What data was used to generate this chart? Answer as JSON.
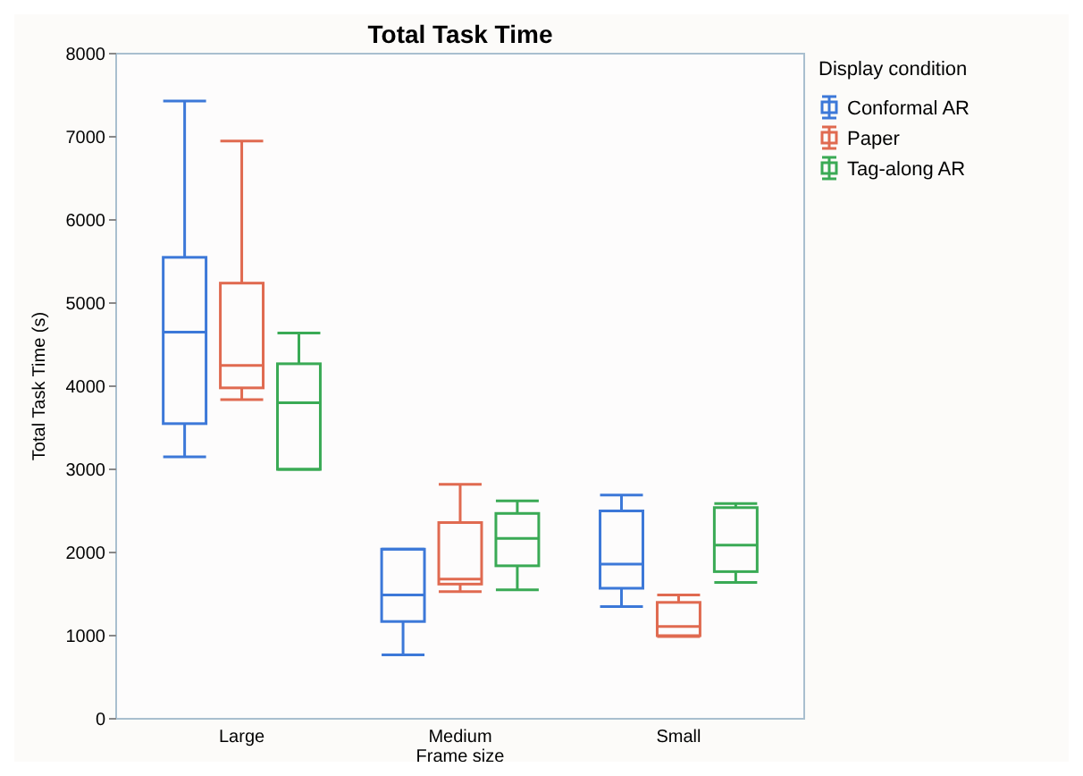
{
  "chart_data": {
    "type": "box",
    "title": "Total Task Time",
    "xlabel": "Frame size",
    "ylabel": "Total Task Time (s)",
    "legend_title": "Display condition",
    "legend": "top right",
    "grid": false,
    "categories": [
      "Large",
      "Medium",
      "Small"
    ],
    "ylim": [
      0,
      8000
    ],
    "yticks": [
      0,
      1000,
      2000,
      3000,
      4000,
      5000,
      6000,
      7000,
      8000
    ],
    "series": [
      {
        "name": "Conformal AR",
        "color": "#3c78d8",
        "boxes": [
          {
            "low": 3150,
            "q1": 3550,
            "median": 4650,
            "q3": 5550,
            "high": 7430
          },
          {
            "low": 770,
            "q1": 1170,
            "median": 1490,
            "q3": 2040,
            "high": 2040
          },
          {
            "low": 1350,
            "q1": 1570,
            "median": 1860,
            "q3": 2500,
            "high": 2690
          }
        ]
      },
      {
        "name": "Paper",
        "color": "#e06a50",
        "boxes": [
          {
            "low": 3840,
            "q1": 3980,
            "median": 4250,
            "q3": 5240,
            "high": 6950
          },
          {
            "low": 1530,
            "q1": 1620,
            "median": 1680,
            "q3": 2360,
            "high": 2820
          },
          {
            "low": 990,
            "q1": 1000,
            "median": 1110,
            "q3": 1400,
            "high": 1490
          }
        ]
      },
      {
        "name": "Tag-along AR",
        "color": "#3aaa55",
        "boxes": [
          {
            "low": 3000,
            "q1": 3000,
            "median": 3800,
            "q3": 4270,
            "high": 4640
          },
          {
            "low": 1550,
            "q1": 1840,
            "median": 2170,
            "q3": 2470,
            "high": 2620
          },
          {
            "low": 1640,
            "q1": 1770,
            "median": 2090,
            "q3": 2540,
            "high": 2590
          }
        ]
      }
    ]
  }
}
